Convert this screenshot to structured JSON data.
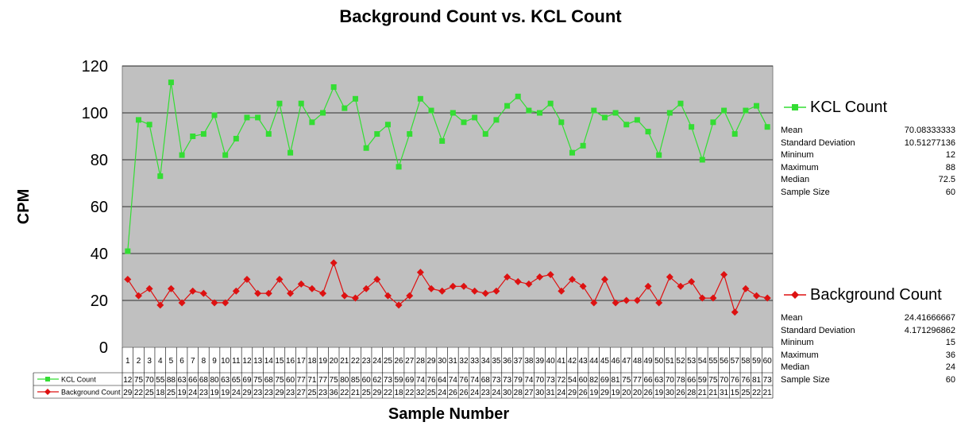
{
  "chart_data": {
    "type": "line",
    "title": "Background Count vs. KCL Count",
    "xlabel": "Sample Number",
    "ylabel": "CPM",
    "ylim": [
      0,
      120
    ],
    "yticks": [
      0,
      20,
      40,
      60,
      80,
      100,
      120
    ],
    "grid": true,
    "legend_position": "right",
    "categories": [
      1,
      2,
      3,
      4,
      5,
      6,
      7,
      8,
      9,
      10,
      11,
      12,
      13,
      14,
      15,
      16,
      17,
      18,
      19,
      20,
      21,
      22,
      23,
      24,
      25,
      26,
      27,
      28,
      29,
      30,
      31,
      32,
      33,
      34,
      35,
      36,
      37,
      38,
      39,
      40,
      41,
      42,
      43,
      44,
      45,
      46,
      47,
      48,
      49,
      50,
      51,
      52,
      53,
      54,
      55,
      56,
      57,
      58,
      59,
      60
    ],
    "series": [
      {
        "name": "KCL Count",
        "color": "#33dd33",
        "marker": "square",
        "values": [
          41,
          97,
          95,
          73,
          113,
          82,
          90,
          91,
          99,
          82,
          89,
          98,
          98,
          91,
          104,
          83,
          104,
          96,
          100,
          111,
          102,
          106,
          85,
          91,
          95,
          77,
          91,
          106,
          101,
          88,
          100,
          96,
          98,
          91,
          97,
          103,
          107,
          101,
          100,
          104,
          96,
          83,
          86,
          101,
          98,
          100,
          95,
          97,
          92,
          82,
          100,
          104,
          94,
          80,
          96,
          101,
          91,
          101,
          103,
          94
        ],
        "table_values": [
          12,
          75,
          70,
          55,
          88,
          63,
          66,
          68,
          80,
          63,
          65,
          69,
          75,
          68,
          75,
          60,
          77,
          71,
          77,
          75,
          80,
          85,
          60,
          62,
          73,
          59,
          69,
          74,
          76,
          64,
          74,
          76,
          74,
          68,
          73,
          73,
          79,
          74,
          70,
          73,
          72,
          54,
          60,
          82,
          69,
          81,
          75,
          77,
          66,
          63,
          70,
          78,
          66,
          59,
          75,
          70,
          76,
          76,
          81,
          73
        ]
      },
      {
        "name": "Background Count",
        "color": "#dd1111",
        "marker": "diamond",
        "values": [
          29,
          22,
          25,
          18,
          25,
          19,
          24,
          23,
          19,
          19,
          24,
          29,
          23,
          23,
          29,
          23,
          27,
          25,
          23,
          36,
          22,
          21,
          25,
          29,
          22,
          18,
          22,
          32,
          25,
          24,
          26,
          26,
          24,
          23,
          24,
          30,
          28,
          27,
          30,
          31,
          24,
          29,
          26,
          19,
          29,
          19,
          20,
          20,
          26,
          19,
          30,
          26,
          28,
          21,
          21,
          31,
          15,
          25,
          22,
          21
        ],
        "table_values": [
          29,
          22,
          25,
          18,
          25,
          19,
          24,
          23,
          19,
          19,
          24,
          29,
          23,
          23,
          29,
          23,
          27,
          25,
          23,
          36,
          22,
          21,
          25,
          29,
          22,
          18,
          22,
          32,
          25,
          24,
          26,
          26,
          24,
          23,
          24,
          30,
          28,
          27,
          30,
          31,
          24,
          29,
          26,
          19,
          29,
          19,
          20,
          20,
          26,
          19,
          30,
          26,
          28,
          21,
          21,
          31,
          15,
          25,
          22,
          21
        ]
      }
    ],
    "stats": [
      {
        "series": "KCL Count",
        "rows": [
          {
            "label": "Mean",
            "value": "70.08333333"
          },
          {
            "label": "Standard Deviation",
            "value": "10.51277136"
          },
          {
            "label": "Mininum",
            "value": "12"
          },
          {
            "label": "Maximum",
            "value": "88"
          },
          {
            "label": "Median",
            "value": "72.5"
          },
          {
            "label": "Sample Size",
            "value": "60"
          }
        ]
      },
      {
        "series": "Background Count",
        "rows": [
          {
            "label": "Mean",
            "value": "24.41666667"
          },
          {
            "label": "Standard Deviation",
            "value": "4.171296862"
          },
          {
            "label": "Mininum",
            "value": "15"
          },
          {
            "label": "Maximum",
            "value": "36"
          },
          {
            "label": "Median",
            "value": "24"
          },
          {
            "label": "Sample Size",
            "value": "60"
          }
        ]
      }
    ]
  }
}
